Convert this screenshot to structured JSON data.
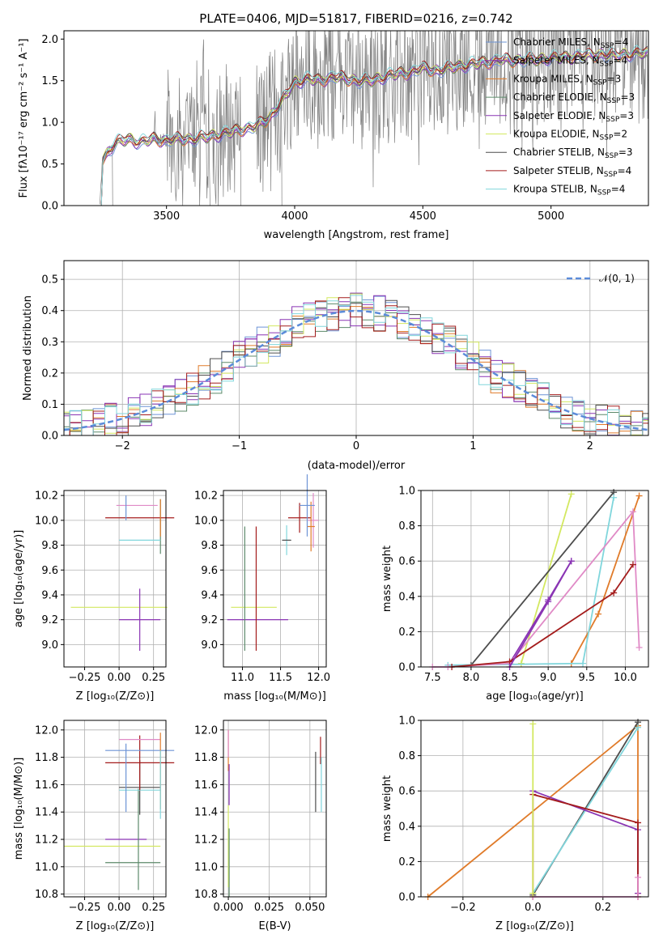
{
  "colors": {
    "Chabrier MILES": "#6d94d6",
    "Salpeter MILES": "#8a35b4",
    "Kroupa MILES": "#e07b2a",
    "Chabrier ELODIE": "#5c8a6a",
    "Salpeter ELODIE": "#8a35b4",
    "Kroupa ELODIE": "#d3e860",
    "Chabrier STELIB": "#4d4d4d",
    "Salpeter STELIB": "#a41c1c",
    "Kroupa STELIB": "#80d6dc",
    "data": "#808080",
    "normal": "#5b8bd9",
    "pink": "#e08ac6"
  },
  "chart_data": [
    {
      "id": "spectrum",
      "type": "line",
      "title": "PLATE=0406, MJD=51817, FIBERID=0216, z=0.742",
      "xlabel": "wavelength [Angstrom, rest frame]",
      "ylabel": "Flux [fλ10⁻¹⁷ erg cm⁻² s⁻¹ A⁻¹]",
      "xlim": [
        3100,
        5380
      ],
      "ylim": [
        0,
        2.1
      ],
      "xticks": [
        "3500",
        "4000",
        "4500",
        "5000"
      ],
      "yticks": [
        "0.0",
        "0.5",
        "1.0",
        "1.5",
        "2.0"
      ],
      "grid": false,
      "legend_position": "top-right",
      "legend": [
        {
          "label": "Chabrier MILES, N",
          "sub": "SSP",
          "tail": "=4",
          "color_key": "Chabrier MILES"
        },
        {
          "label": "Salpeter MILES, N",
          "sub": "SSP",
          "tail": "=4",
          "color_key": "Salpeter MILES"
        },
        {
          "label": "Kroupa MILES, N",
          "sub": "SSP",
          "tail": "=3",
          "color_key": "Kroupa MILES"
        },
        {
          "label": "Chabrier ELODIE, N",
          "sub": "SSP",
          "tail": "=3",
          "color_key": "Chabrier ELODIE"
        },
        {
          "label": "Salpeter ELODIE, N",
          "sub": "SSP",
          "tail": "=3",
          "color_key": "Salpeter ELODIE"
        },
        {
          "label": "Kroupa ELODIE, N",
          "sub": "SSP",
          "tail": "=2",
          "color_key": "Kroupa ELODIE"
        },
        {
          "label": "Chabrier STELIB, N",
          "sub": "SSP",
          "tail": "=3",
          "color_key": "Chabrier STELIB"
        },
        {
          "label": "Salpeter STELIB, N",
          "sub": "SSP",
          "tail": "=4",
          "color_key": "Salpeter STELIB"
        },
        {
          "label": "Kroupa STELIB, N",
          "sub": "SSP",
          "tail": "=4",
          "color_key": "Kroupa STELIB"
        }
      ],
      "model_trend": {
        "x": [
          3240,
          3250,
          3300,
          3350,
          3400,
          3450,
          3500,
          3550,
          3600,
          3650,
          3700,
          3750,
          3800,
          3850,
          3900,
          3950,
          4000,
          4050,
          4100,
          4150,
          4200,
          4250,
          4300,
          4350,
          4400,
          4450,
          4500,
          4550,
          4600,
          4650,
          4700,
          4750,
          4800,
          4850,
          4900,
          4950,
          5000,
          5050,
          5100,
          5150,
          5200,
          5250,
          5300,
          5350
        ],
        "y": [
          0.0,
          0.55,
          0.75,
          0.8,
          0.76,
          0.8,
          0.78,
          0.8,
          0.8,
          0.82,
          0.85,
          0.88,
          0.92,
          0.95,
          1.05,
          1.25,
          1.48,
          1.52,
          1.5,
          1.55,
          1.52,
          1.5,
          1.5,
          1.55,
          1.58,
          1.6,
          1.65,
          1.62,
          1.65,
          1.68,
          1.7,
          1.72,
          1.75,
          1.74,
          1.76,
          1.75,
          1.78,
          1.77,
          1.8,
          1.8,
          1.82,
          1.8,
          1.82,
          1.83
        ]
      },
      "data_segments": [
        [
          3240,
          3290
        ],
        [
          3440,
          3670
        ],
        [
          3680,
          3790
        ],
        [
          3850,
          3950
        ],
        [
          3950,
          5380
        ]
      ]
    },
    {
      "id": "residuals",
      "type": "line",
      "xlabel": "(data-model)/error",
      "ylabel": "Normed distribution",
      "xlim": [
        -2.5,
        2.5
      ],
      "ylim": [
        0,
        0.56
      ],
      "xticks": [
        "−2",
        "−1",
        "0",
        "1",
        "2"
      ],
      "xtick_values": [
        -2,
        -1,
        0,
        1,
        2
      ],
      "yticks": [
        "0.0",
        "0.1",
        "0.2",
        "0.3",
        "0.4",
        "0.5"
      ],
      "grid": true,
      "legend_position": "top-right",
      "normal_label": "𝒩(0, 1)"
    },
    {
      "id": "age-vs-Z",
      "type": "scatter",
      "xlabel": "Z [log₁₀(Z/Z⊙)]",
      "ylabel": "age  [log₁₀(age/yr)]",
      "xlim": [
        -0.4,
        0.34
      ],
      "ylim": [
        8.82,
        10.24
      ],
      "xticks": [
        "−0.25",
        "0.00",
        "0.25"
      ],
      "yticks": [
        "9.0",
        "9.2",
        "9.4",
        "9.6",
        "9.8",
        "10.0",
        "10.2"
      ],
      "grid": true,
      "points": [
        {
          "c": "Kroupa ELODIE",
          "x": 0.0,
          "xe": 0.35,
          "y": 9.3,
          "ye": 0.0
        },
        {
          "c": "Salpeter MILES",
          "x": 0.15,
          "xe": 0.15,
          "y": 9.2,
          "ye": 0.25
        },
        {
          "c": "Chabrier ELODIE",
          "x": 0.3,
          "xe": 0.0,
          "y": 9.95,
          "ye": 0.22
        },
        {
          "c": "Kroupa STELIB",
          "x": 0.15,
          "xe": 0.15,
          "y": 9.84,
          "ye": 0.0
        },
        {
          "c": "Salpeter STELIB",
          "x": 0.15,
          "xe": 0.25,
          "y": 10.02,
          "ye": 0.0
        },
        {
          "c": "pink",
          "x": 0.13,
          "xe": 0.15,
          "y": 10.12,
          "ye": 0.0
        },
        {
          "c": "Kroupa MILES",
          "x": 0.3,
          "xe": 0.0,
          "y": 10.02,
          "ye": 0.15
        },
        {
          "c": "Chabrier MILES",
          "x": 0.05,
          "xe": 0.0,
          "y": 10.1,
          "ye": 0.1
        }
      ]
    },
    {
      "id": "age-vs-mass",
      "type": "scatter",
      "xlabel": "mass [log₁₀(M/M⊙)]",
      "xlim": [
        10.75,
        12.1
      ],
      "ylim": [
        8.82,
        10.24
      ],
      "xticks": [
        "11.0",
        "11.5",
        "12.0"
      ],
      "xtick_values": [
        11.0,
        11.5,
        12.0
      ],
      "yticks": [
        "9.0",
        "9.2",
        "9.4",
        "9.6",
        "9.8",
        "10.0",
        "10.2"
      ],
      "grid": true,
      "points": [
        {
          "c": "Kroupa ELODIE",
          "x": 11.15,
          "xe": 0.3,
          "y": 9.3,
          "ye": 0.0
        },
        {
          "c": "Salpeter MILES",
          "x": 11.2,
          "xe": 0.4,
          "y": 9.2,
          "ye": 0.0
        },
        {
          "c": "Chabrier ELODIE",
          "x": 11.03,
          "xe": 0.0,
          "y": 9.45,
          "ye": 0.5
        },
        {
          "c": "Salpeter STELIB",
          "x": 11.18,
          "xe": 0.0,
          "y": 9.45,
          "ye": 0.5
        },
        {
          "c": "Kroupa STELIB",
          "x": 11.58,
          "xe": 0.05,
          "y": 9.84,
          "ye": 0.12
        },
        {
          "c": "Chabrier STELIB",
          "x": 11.58,
          "xe": 0.06,
          "y": 9.84,
          "ye": 0.0
        },
        {
          "c": "pink",
          "x": 11.93,
          "xe": 0.07,
          "y": 10.0,
          "ye": 0.22
        },
        {
          "c": "Salpeter STELIB",
          "x": 11.75,
          "xe": 0.15,
          "y": 10.02,
          "ye": 0.12
        },
        {
          "c": "Kroupa MILES",
          "x": 11.9,
          "xe": 0.05,
          "y": 9.95,
          "ye": 0.2
        },
        {
          "c": "Chabrier MILES",
          "x": 11.85,
          "xe": 0.1,
          "y": 10.12,
          "ye": 0.25
        }
      ]
    },
    {
      "id": "mass-weight-vs-age",
      "type": "line",
      "xlabel": "age  [log₁₀(age/yr)]",
      "ylabel": "mass weight",
      "xlim": [
        7.35,
        10.3
      ],
      "ylim": [
        0,
        1.0
      ],
      "xticks": [
        "7.5",
        "8.0",
        "8.5",
        "9.0",
        "9.5",
        "10.0"
      ],
      "yticks": [
        "0.0",
        "0.2",
        "0.4",
        "0.6",
        "0.8",
        "1.0"
      ],
      "grid": true,
      "series": [
        {
          "c": "Kroupa ELODIE",
          "x": [
            8.65,
            9.3
          ],
          "y": [
            0.02,
            0.98
          ]
        },
        {
          "c": "Chabrier STELIB",
          "x": [
            8.0,
            9.85
          ],
          "y": [
            0.01,
            0.99
          ]
        },
        {
          "c": "Kroupa MILES",
          "x": [
            9.3,
            9.65,
            10.18
          ],
          "y": [
            0.02,
            0.3,
            0.97
          ]
        },
        {
          "c": "Kroupa STELIB",
          "x": [
            7.7,
            9.45,
            9.85
          ],
          "y": [
            0.01,
            0.02,
            0.96
          ]
        },
        {
          "c": "Salpeter MILES",
          "x": [
            8.5,
            9.0,
            9.3
          ],
          "y": [
            0.02,
            0.38,
            0.6
          ]
        },
        {
          "c": "pink",
          "x": [
            7.5,
            7.7,
            8.5,
            10.1,
            10.18
          ],
          "y": [
            0.0,
            0.0,
            0.02,
            0.88,
            0.11
          ]
        },
        {
          "c": "Salpeter STELIB",
          "x": [
            7.75,
            8.5,
            9.85,
            10.1
          ],
          "y": [
            0.0,
            0.03,
            0.42,
            0.58
          ]
        },
        {
          "c": "Salpeter ELODIE",
          "x": [
            8.5,
            9.0,
            9.3
          ],
          "y": [
            0.0,
            0.37,
            0.6
          ]
        }
      ]
    },
    {
      "id": "mass-vs-Z",
      "type": "scatter",
      "xlabel": "Z [log₁₀(Z/Z⊙)]",
      "ylabel": "mass [log₁₀(M/M⊙)]",
      "xlim": [
        -0.4,
        0.34
      ],
      "ylim": [
        10.78,
        12.07
      ],
      "xticks": [
        "−0.25",
        "0.00",
        "0.25"
      ],
      "yticks": [
        "10.8",
        "11.0",
        "11.2",
        "11.4",
        "11.6",
        "11.8",
        "12.0"
      ],
      "grid": true,
      "points": [
        {
          "c": "Kroupa ELODIE",
          "x": -0.05,
          "xe": 0.35,
          "y": 11.15,
          "ye": 0.0
        },
        {
          "c": "Chabrier ELODIE",
          "x": 0.1,
          "xe": 0.2,
          "y": 11.03,
          "ye": 0.0
        },
        {
          "c": "Salpeter MILES",
          "x": 0.05,
          "xe": 0.15,
          "y": 11.2,
          "ye": 0.0
        },
        {
          "c": "Chabrier ELODIE",
          "x": 0.14,
          "xe": 0.0,
          "y": 11.2,
          "ye": 0.37
        },
        {
          "c": "Chabrier STELIB",
          "x": 0.15,
          "xe": 0.15,
          "y": 11.58,
          "ye": 0.2
        },
        {
          "c": "Kroupa STELIB",
          "x": 0.15,
          "xe": 0.15,
          "y": 11.56,
          "ye": 0.0
        },
        {
          "c": "Salpeter STELIB",
          "x": 0.15,
          "xe": 0.25,
          "y": 11.76,
          "ye": 0.2
        },
        {
          "c": "Chabrier MILES",
          "x": 0.15,
          "xe": 0.25,
          "y": 11.85,
          "ye": 0.0
        },
        {
          "c": "pink",
          "x": 0.15,
          "xe": 0.15,
          "y": 11.93,
          "ye": 0.0
        },
        {
          "c": "Kroupa MILES",
          "x": 0.3,
          "xe": 0.0,
          "y": 11.7,
          "ye": 0.28
        },
        {
          "c": "Chabrier MILES",
          "x": 0.05,
          "xe": 0.0,
          "y": 11.65,
          "ye": 0.25
        },
        {
          "c": "Kroupa STELIB",
          "x": 0.3,
          "xe": 0.0,
          "y": 11.6,
          "ye": 0.25
        }
      ]
    },
    {
      "id": "mass-vs-EBV",
      "type": "scatter",
      "xlabel": "E(B-V)",
      "xlim": [
        -0.003,
        0.06
      ],
      "ylim": [
        10.78,
        12.07
      ],
      "xticks": [
        "0.000",
        "0.025",
        "0.050"
      ],
      "xtick_values": [
        0.0,
        0.025,
        0.05
      ],
      "yticks": [
        "10.8",
        "11.0",
        "11.2",
        "11.4",
        "11.6",
        "11.8",
        "12.0"
      ],
      "grid": true,
      "points": [
        {
          "c": "Kroupa ELODIE",
          "x": 0.0,
          "xe": 0.0,
          "y": 11.15,
          "ye": 0.3
        },
        {
          "c": "Chabrier ELODIE",
          "x": 0.0005,
          "xe": 0.0,
          "y": 11.03,
          "ye": 0.25
        },
        {
          "c": "Kroupa MILES",
          "x": 0.0,
          "xe": 0.0,
          "y": 11.85,
          "ye": 0.15
        },
        {
          "c": "pink",
          "x": 0.0,
          "xe": 0.0,
          "y": 11.9,
          "ye": 0.1
        },
        {
          "c": "Salpeter MILES",
          "x": 0.0005,
          "xe": 0.0,
          "y": 11.6,
          "ye": 0.15
        },
        {
          "c": "Chabrier STELIB",
          "x": 0.0535,
          "xe": 0.0,
          "y": 11.62,
          "ye": 0.22
        },
        {
          "c": "Salpeter STELIB",
          "x": 0.0565,
          "xe": 0.0,
          "y": 11.85,
          "ye": 0.1
        },
        {
          "c": "Kroupa STELIB",
          "x": 0.057,
          "xe": 0.0,
          "y": 11.6,
          "ye": 0.2
        }
      ]
    },
    {
      "id": "mass-weight-vs-Z",
      "type": "line",
      "xlabel": "Z [log₁₀(Z/Z⊙)]",
      "ylabel": "mass weight",
      "xlim": [
        -0.32,
        0.33
      ],
      "ylim": [
        0,
        1.0
      ],
      "xticks": [
        "−0.2",
        "0.0",
        "0.2"
      ],
      "yticks": [
        "0.0",
        "0.2",
        "0.4",
        "0.6",
        "0.8",
        "1.0"
      ],
      "grid": true,
      "series": [
        {
          "c": "Kroupa MILES",
          "x": [
            -0.3,
            0.3,
            0.3
          ],
          "y": [
            0.0,
            0.97,
            0.02
          ]
        },
        {
          "c": "Chabrier STELIB",
          "x": [
            0.0,
            0.3
          ],
          "y": [
            0.01,
            0.99
          ]
        },
        {
          "c": "Kroupa STELIB",
          "x": [
            0.0,
            0.3
          ],
          "y": [
            0.02,
            0.96
          ]
        },
        {
          "c": "Salpeter MILES",
          "x": [
            0.0,
            0.3,
            0.3
          ],
          "y": [
            0.6,
            0.38,
            0.02
          ]
        },
        {
          "c": "Salpeter STELIB",
          "x": [
            0.0,
            0.0,
            0.3,
            0.3
          ],
          "y": [
            0.0,
            0.58,
            0.42,
            0.0
          ]
        },
        {
          "c": "pink",
          "x": [
            0.0,
            0.3,
            0.3
          ],
          "y": [
            0.0,
            0.0,
            0.11
          ]
        },
        {
          "c": "Kroupa ELODIE",
          "x": [
            0.0,
            0.0
          ],
          "y": [
            0.02,
            0.98
          ]
        }
      ]
    }
  ]
}
